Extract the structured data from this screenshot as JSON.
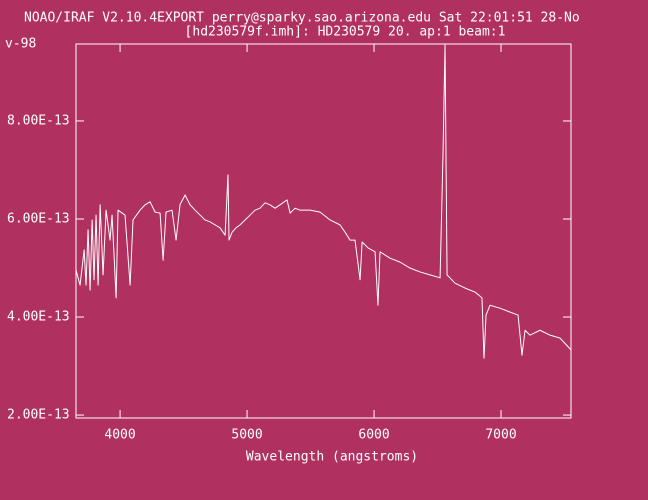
{
  "chart_data": {
    "type": "line",
    "title": "NOAO/IRAF V2.10.4EXPORT perry@sparky.sao.arizona.edu Sat 22:01:51 28-No",
    "subtitle": "[hd230579f.imh]: HD230579 20. ap:1 beam:1",
    "corner_label": "v-98",
    "x_label": "Wavelength (angstroms)",
    "xlim": [
      3653,
      7551
    ],
    "ylim": [
      1.94e-13,
      9.57e-13
    ],
    "xticks": [
      4000,
      5000,
      6000,
      7000
    ],
    "yticks": [
      {
        "value": 2e-13,
        "label": "2.00E-13"
      },
      {
        "value": 4e-13,
        "label": "4.00E-13"
      },
      {
        "value": 6e-13,
        "label": "6.00E-13"
      },
      {
        "value": 8e-13,
        "label": "8.00E-13"
      }
    ],
    "color": "#ffffff",
    "x": [
      3653,
      3685,
      3717,
      3732,
      3748,
      3764,
      3780,
      3795,
      3811,
      3827,
      3843,
      3866,
      3890,
      3921,
      3937,
      3969,
      3984,
      4039,
      4079,
      4102,
      4157,
      4197,
      4236,
      4276,
      4315,
      4339,
      4362,
      4409,
      4441,
      4472,
      4512,
      4551,
      4591,
      4630,
      4669,
      4709,
      4748,
      4787,
      4827,
      4850,
      4858,
      4882,
      4913,
      4945,
      4984,
      5024,
      5063,
      5102,
      5142,
      5181,
      5220,
      5260,
      5315,
      5339,
      5378,
      5417,
      5496,
      5575,
      5654,
      5732,
      5772,
      5811,
      5850,
      5890,
      5906,
      5953,
      6008,
      6031,
      6047,
      6126,
      6205,
      6283,
      6362,
      6441,
      6520,
      6543,
      6559,
      6567,
      6575,
      6638,
      6717,
      6795,
      6850,
      6866,
      6882,
      6913,
      6992,
      7071,
      7134,
      7165,
      7189,
      7228,
      7307,
      7386,
      7465,
      7551
    ],
    "values": [
      4.96e-13,
      4.65e-13,
      5.37e-13,
      4.65e-13,
      5.78e-13,
      4.55e-13,
      5.98e-13,
      4.76e-13,
      6.08e-13,
      4.65e-13,
      6.29e-13,
      4.86e-13,
      6.18e-13,
      5.57e-13,
      6.08e-13,
      4.39e-13,
      6.18e-13,
      6.08e-13,
      4.65e-13,
      5.98e-13,
      6.18e-13,
      6.29e-13,
      6.35e-13,
      6.14e-13,
      6.12e-13,
      5.16e-13,
      6.14e-13,
      6.18e-13,
      5.57e-13,
      6.29e-13,
      6.49e-13,
      6.29e-13,
      6.18e-13,
      6.08e-13,
      5.98e-13,
      5.94e-13,
      5.88e-13,
      5.82e-13,
      5.67e-13,
      6.9e-13,
      5.57e-13,
      5.73e-13,
      5.82e-13,
      5.88e-13,
      5.98e-13,
      6.08e-13,
      6.18e-13,
      6.22e-13,
      6.33e-13,
      6.29e-13,
      6.22e-13,
      6.29e-13,
      6.39e-13,
      6.12e-13,
      6.22e-13,
      6.18e-13,
      6.18e-13,
      6.14e-13,
      5.98e-13,
      5.88e-13,
      5.73e-13,
      5.57e-13,
      5.57e-13,
      4.76e-13,
      5.53e-13,
      5.41e-13,
      5.33e-13,
      4.24e-13,
      5.33e-13,
      5.2e-13,
      5.12e-13,
      5e-13,
      4.92e-13,
      4.86e-13,
      4.8e-13,
      7.31e-13,
      9.55e-13,
      7.2e-13,
      4.86e-13,
      4.69e-13,
      4.59e-13,
      4.51e-13,
      4.39e-13,
      3.16e-13,
      4.04e-13,
      4.24e-13,
      4.18e-13,
      4.1e-13,
      4.04e-13,
      3.22e-13,
      3.73e-13,
      3.63e-13,
      3.73e-13,
      3.63e-13,
      3.57e-13,
      3.33e-13
    ]
  }
}
